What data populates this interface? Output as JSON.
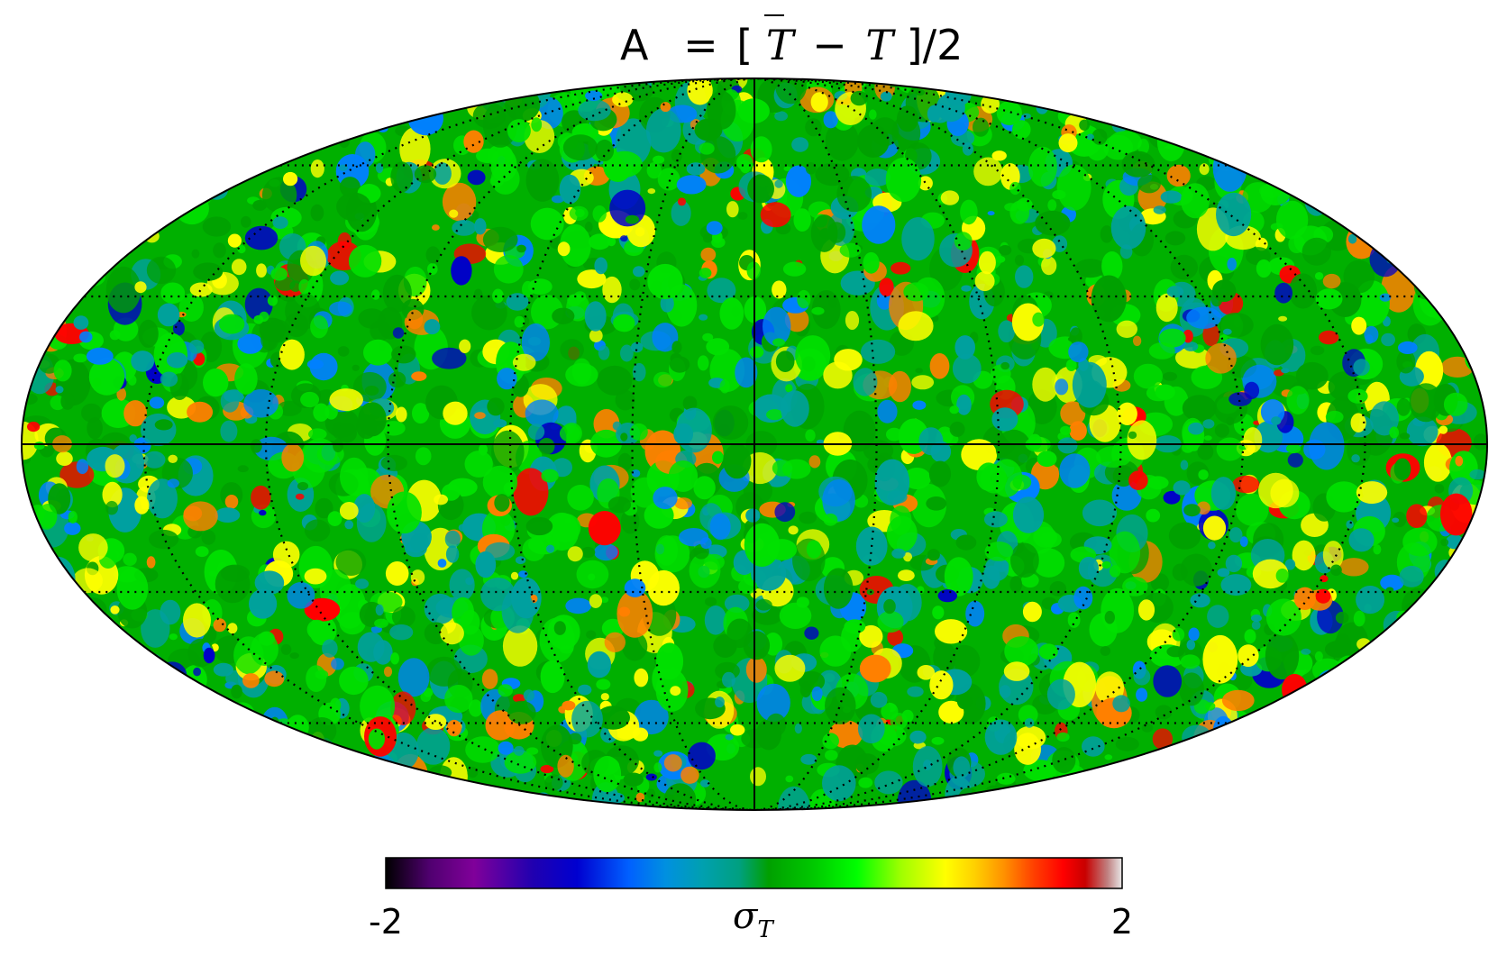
{
  "title": {
    "prefix": "A",
    "equals": "=",
    "open_bracket": "[",
    "t": "T",
    "minus": "−",
    "tbar": "T",
    "close": "]/2"
  },
  "map": {
    "projection": "mollweide",
    "graticule": "dotted",
    "central_axes": "solid",
    "palette": [
      "#000000",
      "#7a0095",
      "#0000c8",
      "#0080ff",
      "#00a0a0",
      "#00a000",
      "#00e000",
      "#ffff00",
      "#ff8000",
      "#ff0000",
      "#c80000",
      "#d0d0d0"
    ]
  },
  "colorbar": {
    "min_label": "-2",
    "max_label": "2",
    "unit_symbol": "σ",
    "unit_subscript": "T",
    "min": -2,
    "max": 2
  }
}
